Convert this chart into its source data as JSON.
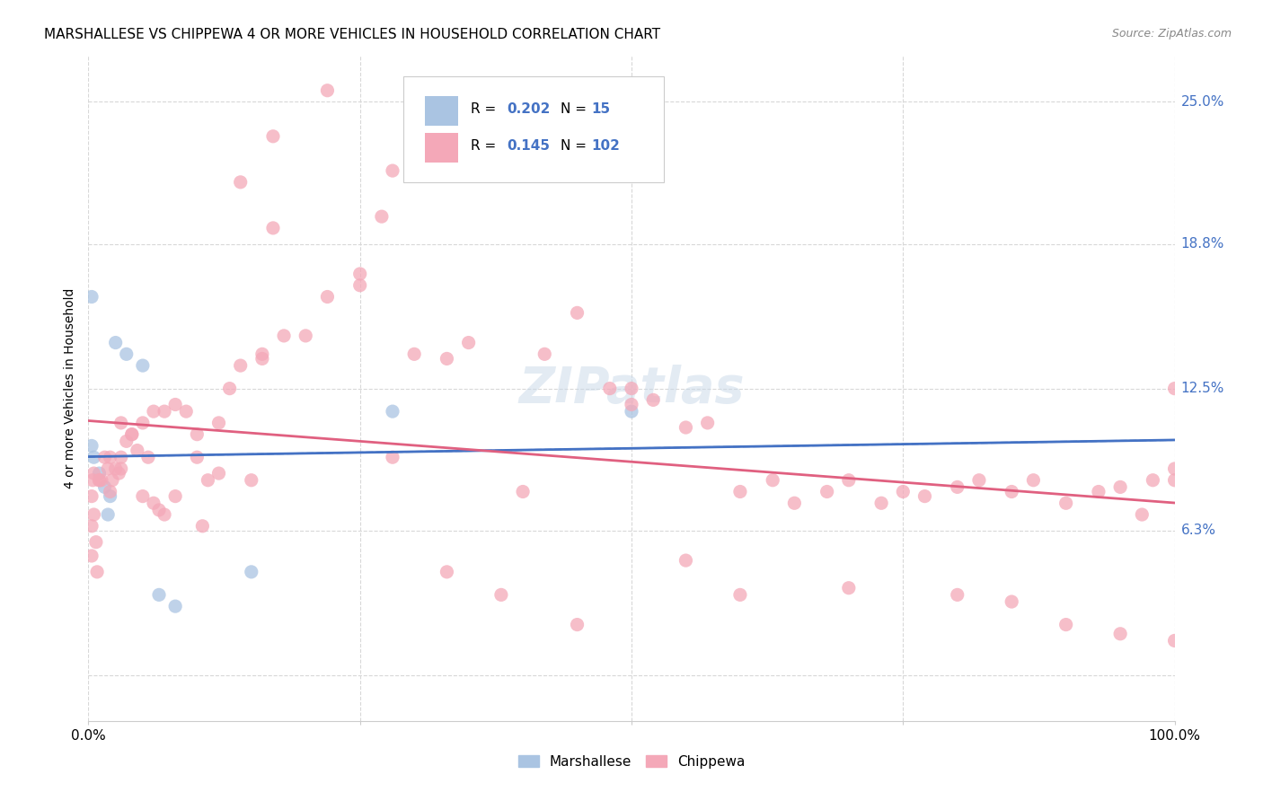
{
  "title": "MARSHALLESE VS CHIPPEWA 4 OR MORE VEHICLES IN HOUSEHOLD CORRELATION CHART",
  "source": "Source: ZipAtlas.com",
  "ylabel": "4 or more Vehicles in Household",
  "color_marshallese": "#aac4e2",
  "color_chippewa": "#f4a8b8",
  "color_blue_line": "#4472c4",
  "color_pink_line": "#e06080",
  "color_blue_text": "#4472c4",
  "color_grid": "#d8d8d8",
  "marshallese_x": [
    0.3,
    0.3,
    0.5,
    1.0,
    1.5,
    2.0,
    2.5,
    3.5,
    5.0,
    6.5,
    8.0,
    15.0,
    28.0,
    50.0,
    1.8
  ],
  "marshallese_y": [
    16.5,
    10.0,
    9.5,
    8.8,
    8.2,
    7.8,
    14.5,
    14.0,
    13.5,
    3.5,
    3.0,
    4.5,
    11.5,
    11.5,
    7.0
  ],
  "chippewa_x": [
    0.3,
    0.3,
    0.3,
    0.5,
    0.5,
    0.7,
    0.8,
    1.0,
    1.2,
    1.5,
    1.8,
    2.0,
    2.2,
    2.5,
    2.8,
    3.0,
    3.5,
    4.0,
    5.0,
    5.5,
    6.0,
    7.0,
    8.0,
    9.0,
    10.0,
    11.0,
    12.0,
    13.0,
    14.0,
    15.0,
    16.0,
    17.0,
    18.0,
    20.0,
    22.0,
    25.0,
    27.0,
    28.0,
    30.0,
    33.0,
    35.0,
    38.0,
    40.0,
    42.0,
    45.0,
    48.0,
    50.0,
    52.0,
    55.0,
    57.0,
    60.0,
    63.0,
    65.0,
    68.0,
    70.0,
    73.0,
    75.0,
    77.0,
    80.0,
    82.0,
    85.0,
    87.0,
    90.0,
    93.0,
    95.0,
    97.0,
    98.0,
    100.0,
    100.0,
    100.0,
    0.4,
    1.0,
    2.0,
    3.0,
    4.0,
    5.0,
    6.0,
    7.0,
    10.0,
    12.0,
    16.0,
    50.0,
    55.0,
    85.0,
    90.0,
    95.0,
    100.0,
    45.0,
    60.0,
    70.0,
    80.0,
    3.0,
    4.5,
    6.5,
    8.0,
    10.5,
    14.0,
    17.0,
    22.0,
    25.0,
    28.0,
    33.0
  ],
  "chippewa_y": [
    7.8,
    6.5,
    5.2,
    8.8,
    7.0,
    5.8,
    4.5,
    8.5,
    8.5,
    9.5,
    9.0,
    9.5,
    8.5,
    9.0,
    8.8,
    11.0,
    10.2,
    10.5,
    11.0,
    9.5,
    11.5,
    11.5,
    11.8,
    11.5,
    10.5,
    8.5,
    11.0,
    12.5,
    13.5,
    8.5,
    13.8,
    19.5,
    14.8,
    14.8,
    16.5,
    17.5,
    20.0,
    22.0,
    14.0,
    13.8,
    14.5,
    3.5,
    8.0,
    14.0,
    15.8,
    12.5,
    11.8,
    12.0,
    10.8,
    11.0,
    8.0,
    8.5,
    7.5,
    8.0,
    8.5,
    7.5,
    8.0,
    7.8,
    8.2,
    8.5,
    8.0,
    8.5,
    7.5,
    8.0,
    8.2,
    7.0,
    8.5,
    9.0,
    12.5,
    8.5,
    8.5,
    8.5,
    8.0,
    9.5,
    10.5,
    7.8,
    7.5,
    7.0,
    9.5,
    8.8,
    14.0,
    12.5,
    5.0,
    3.2,
    2.2,
    1.8,
    1.5,
    2.2,
    3.5,
    3.8,
    3.5,
    9.0,
    9.8,
    7.2,
    7.8,
    6.5,
    21.5,
    23.5,
    25.5,
    17.0,
    9.5,
    4.5
  ],
  "xlim_lo": 0,
  "xlim_hi": 100,
  "ylim_lo": -2,
  "ylim_hi": 27,
  "ytick_positions": [
    0,
    6.3,
    12.5,
    18.8,
    25.0
  ],
  "ytick_labels_right": [
    "",
    "6.3%",
    "12.5%",
    "18.8%",
    "25.0%"
  ],
  "xtick_positions": [
    0,
    25,
    50,
    75,
    100
  ],
  "background_color": "#ffffff"
}
